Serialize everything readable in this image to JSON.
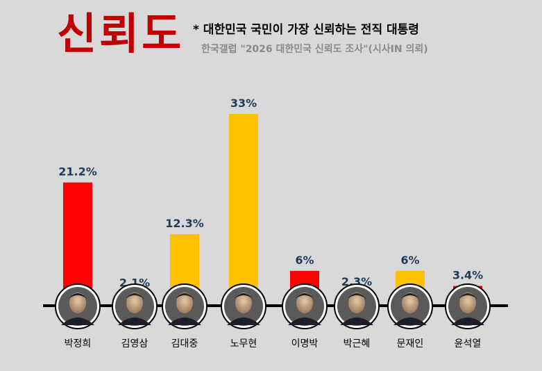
{
  "header": {
    "title": "신뢰도",
    "subtitle": "* 대한민국 국민이 가장 신뢰하는 전직 대통령",
    "source": "한국갤럽 \"2026 대한민국 신뢰도 조사\"(시사IN 의뢰)"
  },
  "colors": {
    "red": "#ff0000",
    "yellow": "#ffc000",
    "value_text": "#1f3b5a",
    "title": "#c00000"
  },
  "chart_data": {
    "type": "bar",
    "categories": [
      "박정희",
      "김영삼",
      "김대중",
      "노무현",
      "이명박",
      "박근혜",
      "문재인",
      "윤석열"
    ],
    "values": [
      21.2,
      2.1,
      12.3,
      33,
      6,
      2.3,
      6,
      3.4
    ],
    "value_labels": [
      "21.2%",
      "2.1%",
      "12.3%",
      "33%",
      "6%",
      "2.3%",
      "6%",
      "3.4%"
    ],
    "bar_colors": [
      "red",
      "red",
      "yellow",
      "yellow",
      "red",
      "red",
      "yellow",
      "red"
    ],
    "portrait_icons": [
      "portrait-icon",
      "portrait-icon",
      "portrait-icon",
      "portrait-icon",
      "portrait-icon",
      "portrait-icon",
      "portrait-icon",
      "portrait-icon"
    ],
    "ylim": [
      0,
      33
    ]
  }
}
